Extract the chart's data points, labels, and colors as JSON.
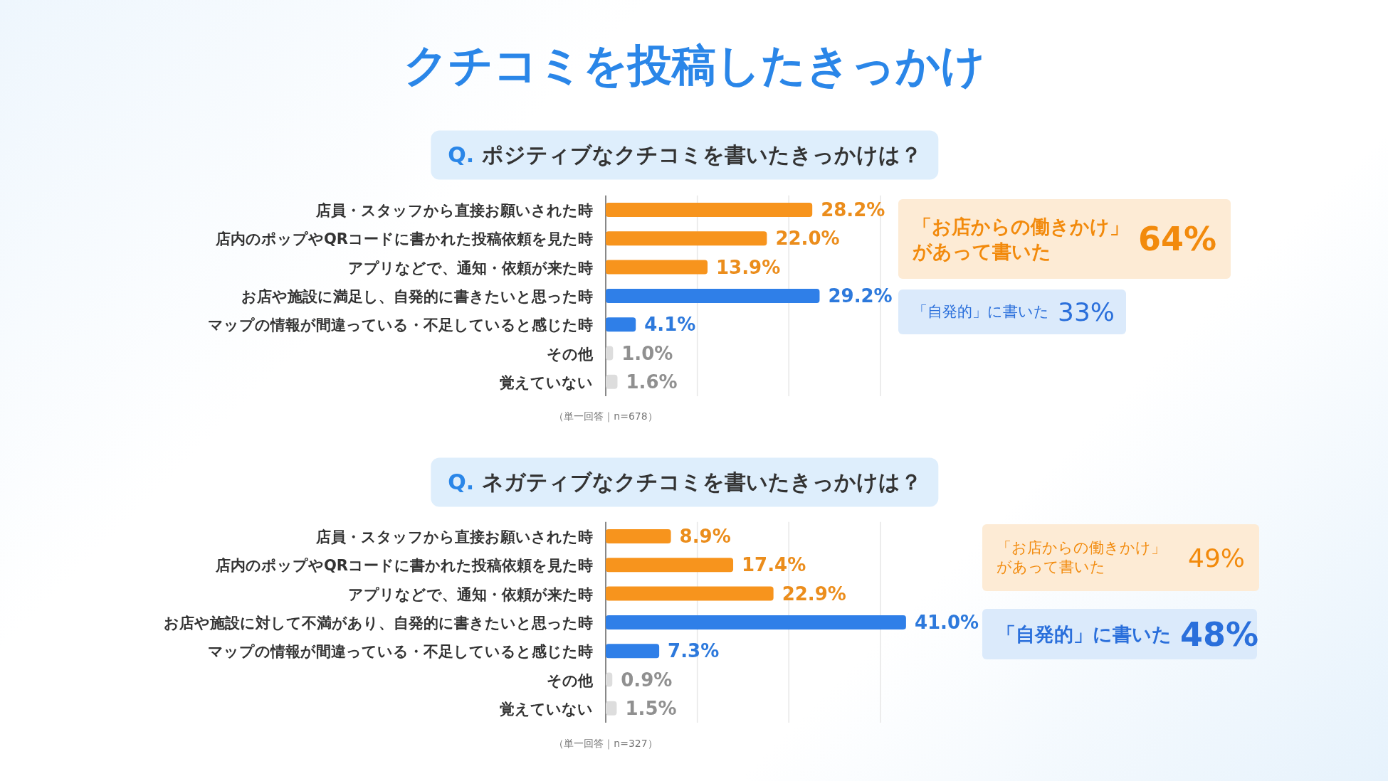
{
  "chart_data": [
    {
      "type": "bar",
      "orientation": "horizontal",
      "title": "クチコミを投稿したきっかけ",
      "subtitle": "Q. ポジティブなクチコミを書いたきっかけは？",
      "categories": [
        "店員・スタッフから直接お願いされた時",
        "店内のポップやQRコードに書かれた投稿依頼を見た時",
        "アプリなどで、通知・依頼が来た時",
        "お店や施設に満足し、自発的に書きたいと思った時",
        "マップの情報が間違っている・不足していると感じた時",
        "その他",
        "覚えていない"
      ],
      "values": [
        28.2,
        22.0,
        13.9,
        29.2,
        4.1,
        1.0,
        1.6
      ],
      "value_labels": [
        "28.2%",
        "22.0%",
        "13.9%",
        "29.2%",
        "4.1%",
        "1.0%",
        "1.6%"
      ],
      "colors": [
        "#f7941d",
        "#f7941d",
        "#f7941d",
        "#2f7fe8",
        "#2f7fe8",
        "#dddddd",
        "#dddddd"
      ],
      "ref_lines": [
        {
          "axis": "x",
          "value": 12.5,
          "color": "#e6e6e6"
        },
        {
          "axis": "x",
          "value": 25,
          "color": "#e6e6e6"
        },
        {
          "axis": "x",
          "value": 37.5,
          "color": "#e6e6e6"
        }
      ],
      "tick_labels": "y",
      "annotations": [
        "「お店からの働きかけ」があって書いた",
        "64%",
        "「自発的」に書いた",
        "33%",
        "（単一回答｜n=678）"
      ]
    },
    {
      "type": "bar",
      "orientation": "horizontal",
      "subtitle": "Q. ネガティブなクチコミを書いたきっかけは？",
      "categories": [
        "店員・スタッフから直接お願いされた時",
        "店内のポップやQRコードに書かれた投稿依頼を見た時",
        "アプリなどで、通知・依頼が来た時",
        "お店や施設に対して不満があり、自発的に書きたいと思った時",
        "マップの情報が間違っている・不足していると感じた時",
        "その他",
        "覚えていない"
      ],
      "values": [
        8.9,
        17.4,
        22.9,
        41.0,
        7.3,
        0.9,
        1.5
      ],
      "value_labels": [
        "8.9%",
        "17.4%",
        "22.9%",
        "41.0%",
        "7.3%",
        "0.9%",
        "1.5%"
      ],
      "colors": [
        "#f7941d",
        "#f7941d",
        "#f7941d",
        "#2f7fe8",
        "#2f7fe8",
        "#dddddd",
        "#dddddd"
      ],
      "ref_lines": [
        {
          "axis": "x",
          "value": 12.5,
          "color": "#e6e6e6"
        },
        {
          "axis": "x",
          "value": 25,
          "color": "#e6e6e6"
        },
        {
          "axis": "x",
          "value": 37.5,
          "color": "#e6e6e6"
        }
      ],
      "tick_labels": "y",
      "annotations": [
        "「お店からの働きかけ」があって書いた",
        "49%",
        "「自発的」に書いた",
        "48%",
        "（単一回答｜n=327）"
      ]
    }
  ]
}
